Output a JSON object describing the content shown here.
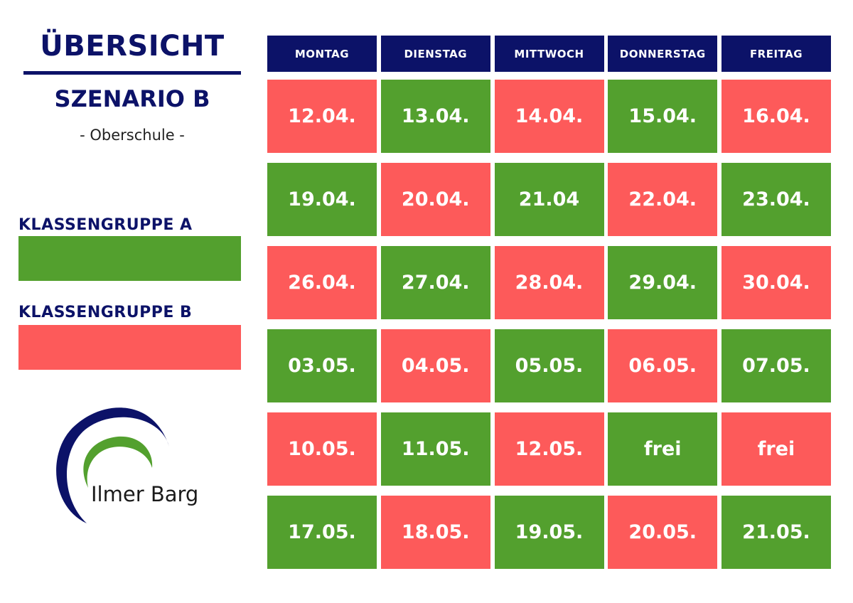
{
  "header": {
    "title": "ÜBERSICHT",
    "subtitle": "SZENARIO B",
    "school_type": "- Oberschule -"
  },
  "colors": {
    "navy": "#0c1268",
    "gruppe_a": "#53a02e",
    "gruppe_b": "#fd5a5a"
  },
  "legend": {
    "a_label": "KLASSENGRUPPE A",
    "b_label": "KLASSENGRUPPE B"
  },
  "logo": {
    "text": "Ilmer Barg",
    "icon": "ilmer-barg-arc-logo"
  },
  "schedule": {
    "days": [
      "MONTAG",
      "DIENSTAG",
      "MITTWOCH",
      "DONNERSTAG",
      "FREITAG"
    ],
    "rows": [
      [
        {
          "t": "12.04.",
          "g": "B"
        },
        {
          "t": "13.04.",
          "g": "A"
        },
        {
          "t": "14.04.",
          "g": "B"
        },
        {
          "t": "15.04.",
          "g": "A"
        },
        {
          "t": "16.04.",
          "g": "B"
        }
      ],
      [
        {
          "t": "19.04.",
          "g": "A"
        },
        {
          "t": "20.04.",
          "g": "B"
        },
        {
          "t": "21.04",
          "g": "A"
        },
        {
          "t": "22.04.",
          "g": "B"
        },
        {
          "t": "23.04.",
          "g": "A"
        }
      ],
      [
        {
          "t": "26.04.",
          "g": "B"
        },
        {
          "t": "27.04.",
          "g": "A"
        },
        {
          "t": "28.04.",
          "g": "B"
        },
        {
          "t": "29.04.",
          "g": "A"
        },
        {
          "t": "30.04.",
          "g": "B"
        }
      ],
      [
        {
          "t": "03.05.",
          "g": "A"
        },
        {
          "t": "04.05.",
          "g": "B"
        },
        {
          "t": "05.05.",
          "g": "A"
        },
        {
          "t": "06.05.",
          "g": "B"
        },
        {
          "t": "07.05.",
          "g": "A"
        }
      ],
      [
        {
          "t": "10.05.",
          "g": "B"
        },
        {
          "t": "11.05.",
          "g": "A"
        },
        {
          "t": "12.05.",
          "g": "B"
        },
        {
          "t": "frei",
          "g": "A"
        },
        {
          "t": "frei",
          "g": "B"
        }
      ],
      [
        {
          "t": "17.05.",
          "g": "A"
        },
        {
          "t": "18.05.",
          "g": "B"
        },
        {
          "t": "19.05.",
          "g": "A"
        },
        {
          "t": "20.05.",
          "g": "B"
        },
        {
          "t": "21.05.",
          "g": "A"
        }
      ]
    ]
  }
}
